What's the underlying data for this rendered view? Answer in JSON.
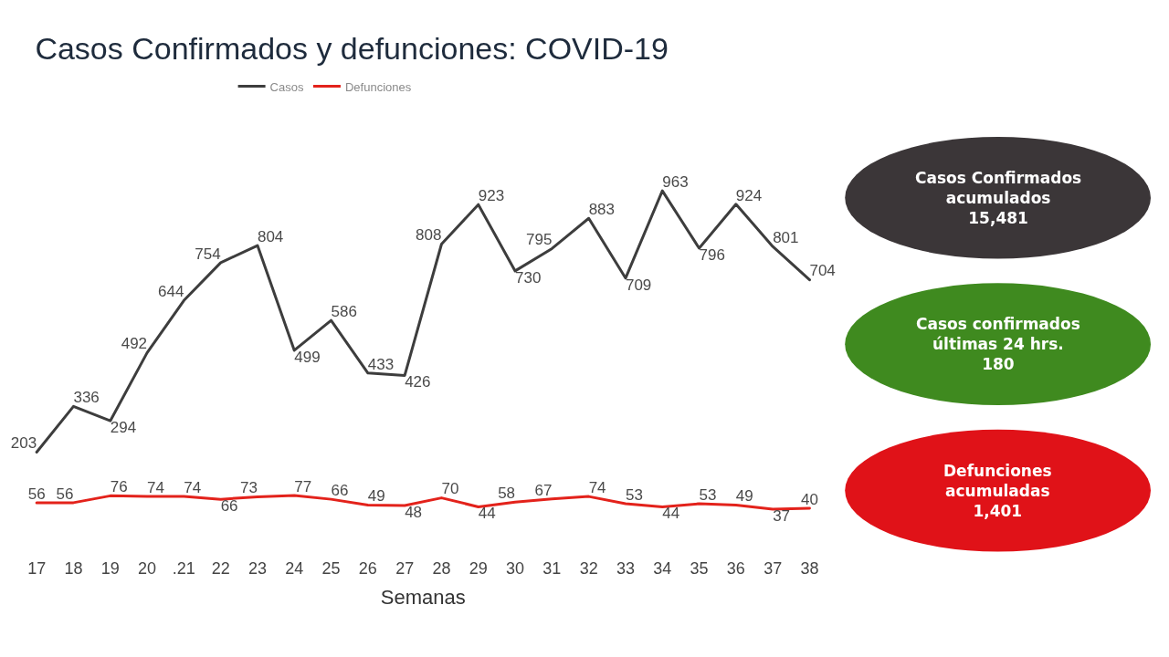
{
  "chart_data": [
    {
      "type": "line",
      "title": "Casos Confirmados y defunciones: COVID-19",
      "xlabel": "Semanas",
      "categories": [
        "17",
        "18",
        "19",
        "20",
        ".21",
        "22",
        "23",
        "24",
        "25",
        "26",
        "27",
        "28",
        "29",
        "30",
        "31",
        "32",
        "33",
        "34",
        "35",
        "36",
        "37",
        "38"
      ],
      "series": [
        {
          "name": "Casos",
          "color": "#3d3d3d",
          "values": [
            203,
            336,
            294,
            492,
            644,
            754,
            804,
            499,
            586,
            433,
            426,
            808,
            923,
            730,
            795,
            883,
            709,
            963,
            796,
            924,
            801,
            704
          ]
        },
        {
          "name": "Defunciones",
          "color": "#e3221b",
          "values": [
            56,
            56,
            76,
            74,
            74,
            66,
            73,
            77,
            66,
            49,
            48,
            70,
            44,
            58,
            67,
            74,
            53,
            44,
            53,
            49,
            37,
            40
          ]
        }
      ],
      "data_labels": true,
      "legend": "top left",
      "grid": false,
      "marker": "none",
      "line_style": "solid",
      "tick_labels": "x"
    },
    {
      "type": "other",
      "categories": [
        "Casos Confirmados acumulados",
        "Casos confirmados últimas 24 hrs.",
        "Defunciones acumuladas"
      ],
      "value_labels": [
        "15,481",
        "180",
        "1,401"
      ],
      "colors": [
        "#3b3638",
        "#3f8a1f",
        "#e01218"
      ]
    }
  ]
}
